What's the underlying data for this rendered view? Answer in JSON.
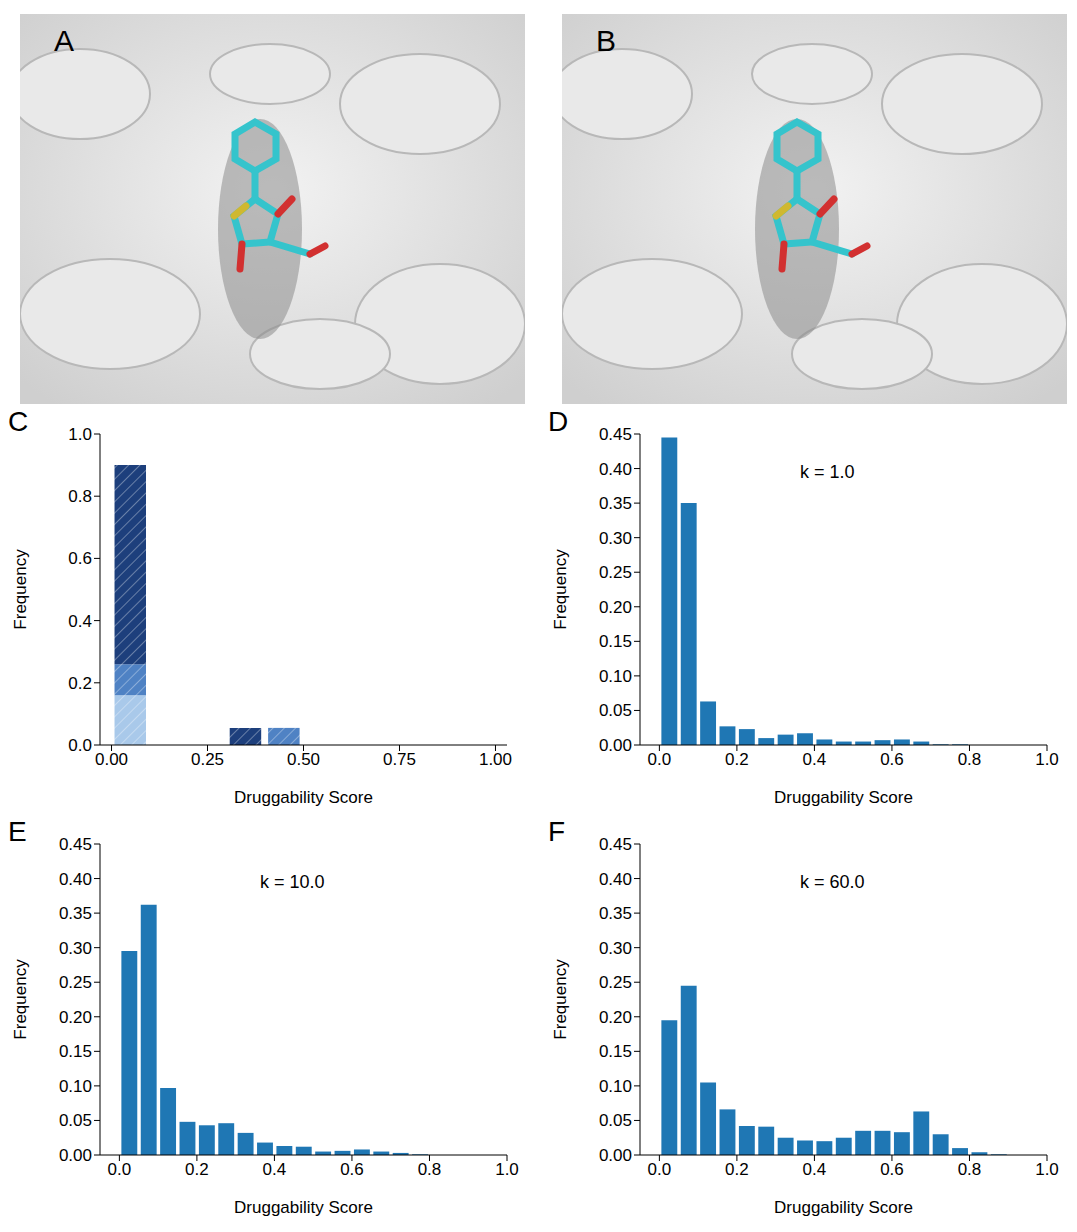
{
  "images": [
    {
      "panel": "A"
    },
    {
      "panel": "B"
    }
  ],
  "chart_data": [
    {
      "panel": "C",
      "type": "bar",
      "stacked": true,
      "x_label": "Druggability Score",
      "y_label": "Frequency",
      "bins": [
        0,
        0.1,
        0.2,
        0.3,
        0.4,
        0.5,
        0.6,
        0.7,
        0.8,
        0.9,
        1.0
      ],
      "series": [
        {
          "color": "#a9c9ea",
          "values": [
            0.16,
            0,
            0,
            0,
            0,
            0,
            0,
            0,
            0,
            0
          ]
        },
        {
          "color": "#4f82c4",
          "values": [
            0.1,
            0,
            0,
            0,
            0.055,
            0,
            0,
            0,
            0,
            0
          ]
        },
        {
          "color": "#1d3f7c",
          "values": [
            0.64,
            0,
            0,
            0.055,
            0,
            0,
            0,
            0,
            0,
            0
          ]
        }
      ],
      "xlim": [
        -0.03,
        1.03
      ],
      "xticks": [
        {
          "value": 0,
          "label": "0.00"
        },
        {
          "value": 0.25,
          "label": "0.25"
        },
        {
          "value": 0.5,
          "label": "0.50"
        },
        {
          "value": 0.75,
          "label": "0.75"
        },
        {
          "value": 1,
          "label": "1.00"
        }
      ],
      "ylim": [
        0,
        1
      ],
      "yticks": [
        {
          "value": 0,
          "label": "0.0"
        },
        0.2,
        0.4,
        0.6,
        0.8,
        {
          "value": 1,
          "label": "1.0"
        }
      ]
    },
    {
      "panel": "D",
      "type": "bar",
      "x_label": "Druggability Score",
      "y_label": "Frequency",
      "annotations": [
        "k = 1.0"
      ],
      "bins": [
        0,
        0.05,
        0.1,
        0.15,
        0.2,
        0.25,
        0.3,
        0.35,
        0.4,
        0.45,
        0.5,
        0.55,
        0.6,
        0.65,
        0.7,
        0.75,
        0.8,
        0.85,
        0.9,
        0.95,
        1.0
      ],
      "series": [
        {
          "color": "#1f77b4",
          "values": [
            0.445,
            0.35,
            0.063,
            0.027,
            0.023,
            0.01,
            0.015,
            0.017,
            0.008,
            0.005,
            0.005,
            0.007,
            0.008,
            0.005,
            0.001,
            0.001,
            0,
            0,
            0,
            0
          ]
        }
      ],
      "xlim": [
        -0.05,
        1.0
      ],
      "xticks": [
        {
          "value": 0,
          "label": "0.0"
        },
        0.2,
        0.4,
        0.6,
        0.8,
        {
          "value": 1,
          "label": "1.0"
        }
      ],
      "ylim": [
        0,
        0.45
      ],
      "yticks": [
        {
          "value": 0,
          "label": "0.00"
        },
        0.05,
        {
          "value": 0.1,
          "label": "0.10"
        },
        0.15,
        {
          "value": 0.2,
          "label": "0.20"
        },
        0.25,
        {
          "value": 0.3,
          "label": "0.30"
        },
        0.35,
        {
          "value": 0.4,
          "label": "0.40"
        },
        0.45
      ]
    },
    {
      "panel": "E",
      "type": "bar",
      "x_label": "Druggability Score",
      "y_label": "Frequency",
      "annotations": [
        "k = 10.0"
      ],
      "bins": [
        0,
        0.05,
        0.1,
        0.15,
        0.2,
        0.25,
        0.3,
        0.35,
        0.4,
        0.45,
        0.5,
        0.55,
        0.6,
        0.65,
        0.7,
        0.75,
        0.8,
        0.85,
        0.9,
        0.95,
        1.0
      ],
      "series": [
        {
          "color": "#1f77b4",
          "values": [
            0.295,
            0.362,
            0.097,
            0.048,
            0.043,
            0.046,
            0.032,
            0.018,
            0.013,
            0.012,
            0.005,
            0.006,
            0.008,
            0.005,
            0.003,
            0.001,
            0,
            0,
            0,
            0
          ]
        }
      ],
      "xlim": [
        -0.05,
        1.0
      ],
      "xticks": [
        {
          "value": 0,
          "label": "0.0"
        },
        0.2,
        0.4,
        0.6,
        0.8,
        {
          "value": 1,
          "label": "1.0"
        }
      ],
      "ylim": [
        0,
        0.45
      ],
      "yticks": [
        {
          "value": 0,
          "label": "0.00"
        },
        0.05,
        {
          "value": 0.1,
          "label": "0.10"
        },
        0.15,
        {
          "value": 0.2,
          "label": "0.20"
        },
        0.25,
        {
          "value": 0.3,
          "label": "0.30"
        },
        0.35,
        {
          "value": 0.4,
          "label": "0.40"
        },
        0.45
      ]
    },
    {
      "panel": "F",
      "type": "bar",
      "x_label": "Druggability Score",
      "y_label": "Frequency",
      "annotations": [
        "k = 60.0"
      ],
      "bins": [
        0,
        0.05,
        0.1,
        0.15,
        0.2,
        0.25,
        0.3,
        0.35,
        0.4,
        0.45,
        0.5,
        0.55,
        0.6,
        0.65,
        0.7,
        0.75,
        0.8,
        0.85,
        0.9,
        0.95,
        1.0
      ],
      "series": [
        {
          "color": "#1f77b4",
          "values": [
            0.195,
            0.245,
            0.105,
            0.066,
            0.042,
            0.041,
            0.025,
            0.021,
            0.02,
            0.025,
            0.035,
            0.035,
            0.033,
            0.063,
            0.03,
            0.01,
            0.004,
            0.001,
            0,
            0
          ]
        }
      ],
      "xlim": [
        -0.05,
        1.0
      ],
      "xticks": [
        {
          "value": 0,
          "label": "0.0"
        },
        0.2,
        0.4,
        0.6,
        0.8,
        {
          "value": 1,
          "label": "1.0"
        }
      ],
      "ylim": [
        0,
        0.45
      ],
      "yticks": [
        {
          "value": 0,
          "label": "0.00"
        },
        0.05,
        {
          "value": 0.1,
          "label": "0.10"
        },
        0.15,
        {
          "value": 0.2,
          "label": "0.20"
        },
        0.25,
        {
          "value": 0.3,
          "label": "0.30"
        },
        0.35,
        {
          "value": 0.4,
          "label": "0.40"
        },
        0.45
      ]
    }
  ]
}
